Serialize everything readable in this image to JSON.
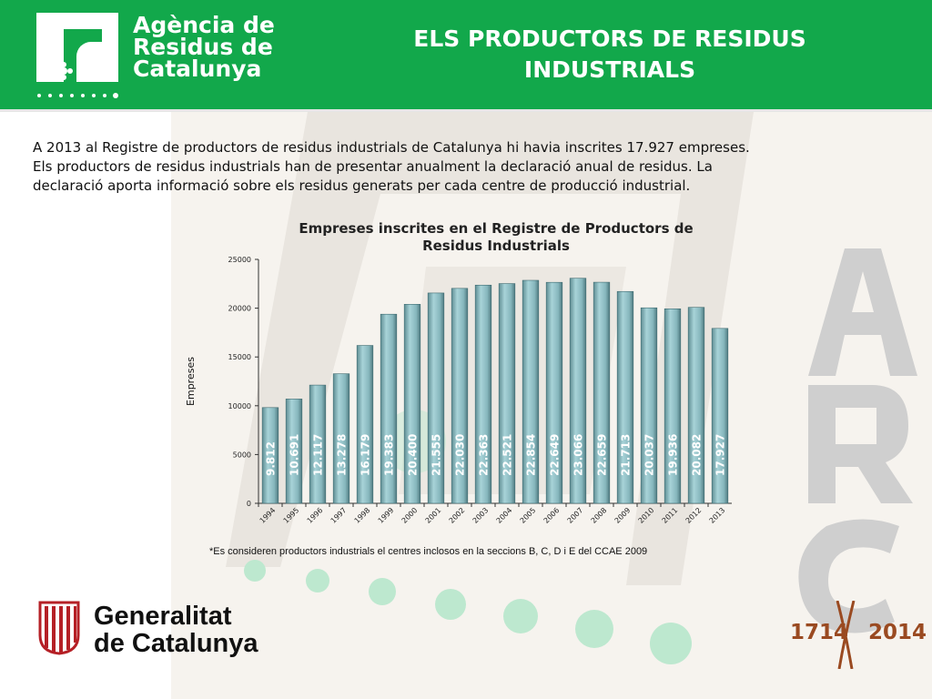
{
  "header": {
    "agency_line1": "Agència de",
    "agency_line2": "Residus de",
    "agency_line3": "Catalunya",
    "title_line1": "ELS PRODUCTORS DE RESIDUS",
    "title_line2": "INDUSTRIALS",
    "brand_color": "#12a84b"
  },
  "intro": {
    "line1": "A 2013 al Registre de productors de residus industrials de Catalunya hi havia inscrites 17.927 empreses.",
    "line2": "Els productors de residus industrials han de presentar anualment la declaració anual de residus. La",
    "line3": "declaració aporta informació sobre els residus generats per cada centre de producció industrial."
  },
  "chart_data": {
    "type": "bar",
    "title_line1": "Empreses inscrites en el Registre de Productors de",
    "title_line2": "Residus Industrials",
    "ylabel": "Empreses",
    "xlabel": "",
    "ylim": [
      0,
      25000
    ],
    "yticks": [
      0,
      5000,
      10000,
      15000,
      20000,
      25000
    ],
    "categories": [
      "1994",
      "1995",
      "1996",
      "1997",
      "1998",
      "1999",
      "2000",
      "2001",
      "2002",
      "2003",
      "2004",
      "2005",
      "2006",
      "2007",
      "2008",
      "2009",
      "2010",
      "2011",
      "2012",
      "2013"
    ],
    "values": [
      9812,
      10691,
      12117,
      13278,
      16179,
      19383,
      20400,
      21555,
      22030,
      22363,
      22521,
      22854,
      22649,
      23066,
      22659,
      21713,
      20037,
      19936,
      20082,
      17927
    ],
    "data_labels": [
      "9.812",
      "10.691",
      "12.117",
      "13.278",
      "16.179",
      "19.383",
      "20.400",
      "21.555",
      "22.030",
      "22.363",
      "22.521",
      "22.854",
      "22.649",
      "23.066",
      "22.659",
      "21.713",
      "20.037",
      "19.936",
      "20.082",
      "17.927"
    ],
    "bar_color": "#86b6bc",
    "grid": false,
    "legend": "none"
  },
  "footnote": "*Es consideren productors industrials el centres inclosos en la seccions B, C, D i  E del CCAE 2009",
  "footer": {
    "gen_line1": "Generalitat",
    "gen_line2": "de Catalunya",
    "anniv_left": "1714",
    "anniv_right": "2014",
    "anniv_color": "#9a4a21"
  }
}
